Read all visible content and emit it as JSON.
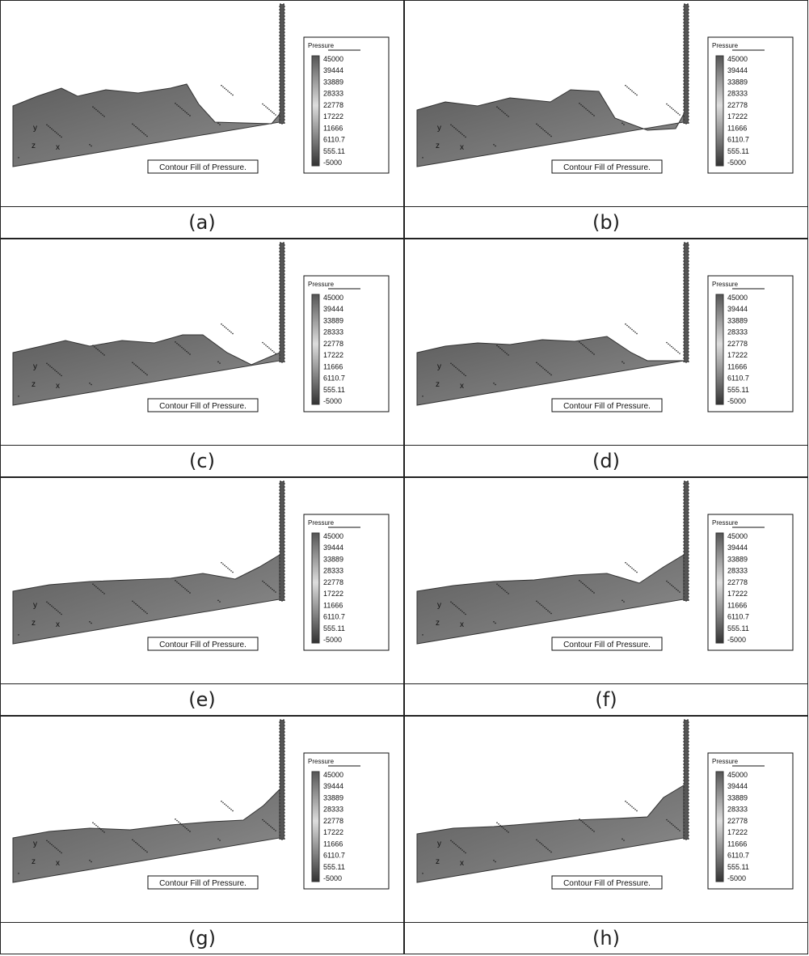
{
  "panels": [
    {
      "label": "(a)"
    },
    {
      "label": "(b)"
    },
    {
      "label": "(c)"
    },
    {
      "label": "(d)"
    },
    {
      "label": "(e)"
    },
    {
      "label": "(f)"
    },
    {
      "label": "(g)"
    },
    {
      "label": "(h)"
    }
  ],
  "legend": {
    "title": "Pressure",
    "ticks": [
      45000,
      39444,
      33889,
      28333,
      22778,
      17222,
      11666,
      6110.7,
      555.11,
      -5000
    ]
  },
  "caption": "Contour Fill of Pressure.",
  "axis_labels": [
    "y",
    "z",
    "x"
  ]
}
